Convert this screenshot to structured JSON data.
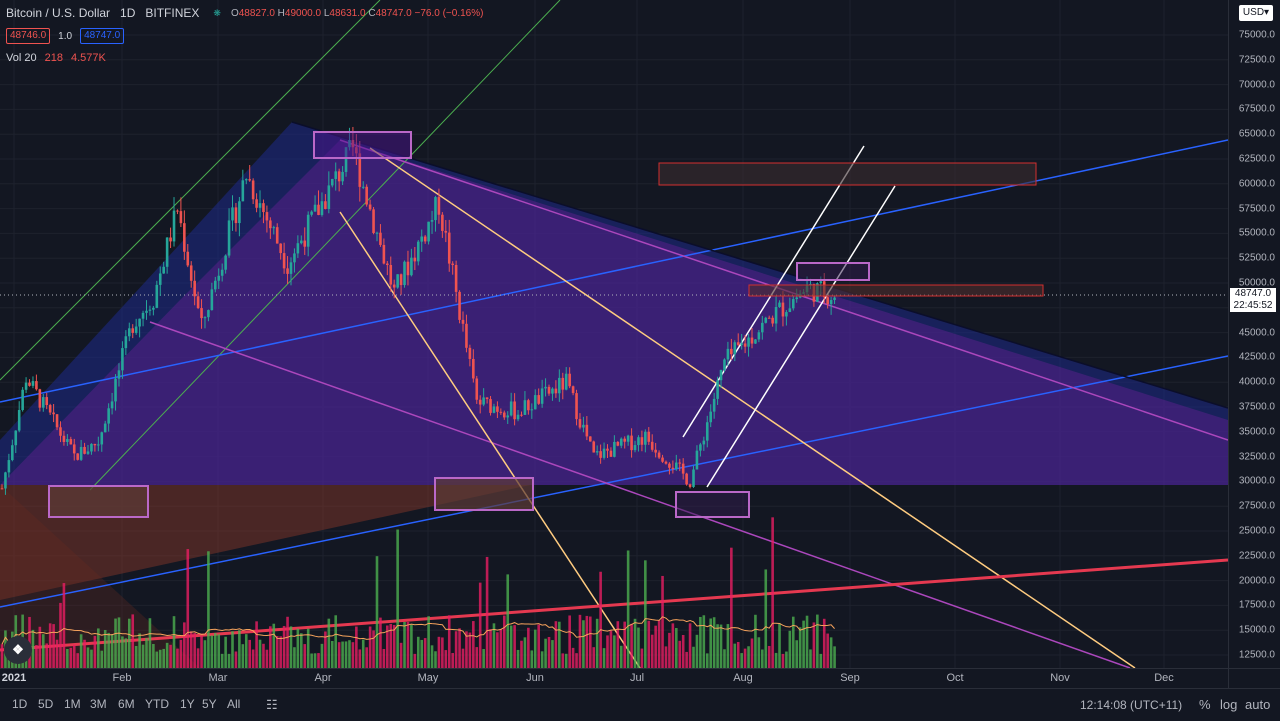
{
  "header": {
    "symbol": "Bitcoin / U.S. Dollar",
    "interval": "1D",
    "exchange": "BITFINEX",
    "ohlc": {
      "o_label": "O",
      "o": "48827.0",
      "h_label": "H",
      "h": "49000.0",
      "l_label": "L",
      "l": "48631.0",
      "c_label": "C",
      "c": "48747.0",
      "change": "−76.0 (−0.16%)"
    },
    "bid": "48746.0",
    "spread": "1.0",
    "ask": "48747.0",
    "volume_label": "Vol 20",
    "volume_value": "218",
    "volume_ma": "4.577K"
  },
  "currency_button": "USD",
  "price_scale": [
    "75000.0",
    "72500.0",
    "70000.0",
    "67500.0",
    "65000.0",
    "62500.0",
    "60000.0",
    "57500.0",
    "55000.0",
    "52500.0",
    "50000.0",
    "47500.0",
    "45000.0",
    "42500.0",
    "40000.0",
    "37500.0",
    "35000.0",
    "32500.0",
    "30000.0",
    "27500.0",
    "25000.0",
    "22500.0",
    "20000.0",
    "17500.0",
    "15000.0",
    "12500.0"
  ],
  "last_price": {
    "value": "48747.0",
    "countdown": "22:45:52"
  },
  "time_axis": [
    "2021",
    "Feb",
    "Mar",
    "Apr",
    "May",
    "Jun",
    "Jul",
    "Aug",
    "Sep",
    "Oct",
    "Nov",
    "Dec"
  ],
  "bottom_bar": {
    "ranges": [
      "1D",
      "5D",
      "1M",
      "3M",
      "6M",
      "YTD",
      "1Y",
      "5Y",
      "All"
    ],
    "clock": "12:14:08 (UTC+11)",
    "percent": "%",
    "log": "log",
    "auto": "auto"
  },
  "colors": {
    "up": "#26a69a",
    "down": "#ef5350",
    "vol_up": "#4caf50",
    "vol_down": "#e91e63",
    "background": "#131722",
    "wedge": "#9c27b0",
    "channel": "#2962ff"
  },
  "chart_data": {
    "type": "candlestick",
    "instrument": "Bitcoin / U.S. Dollar",
    "interval": "1D",
    "x_range": [
      "2021-01-01",
      "2021-12-31"
    ],
    "ylim": [
      11000,
      77000
    ],
    "close_series_approx": [
      {
        "date": "2021-01-01",
        "close": 29300
      },
      {
        "date": "2021-01-08",
        "close": 40500
      },
      {
        "date": "2021-01-15",
        "close": 36500
      },
      {
        "date": "2021-01-22",
        "close": 32500
      },
      {
        "date": "2021-01-29",
        "close": 34000
      },
      {
        "date": "2021-02-08",
        "close": 46000
      },
      {
        "date": "2021-02-14",
        "close": 48500
      },
      {
        "date": "2021-02-21",
        "close": 57500
      },
      {
        "date": "2021-02-28",
        "close": 45500
      },
      {
        "date": "2021-03-13",
        "close": 61000
      },
      {
        "date": "2021-03-25",
        "close": 52000
      },
      {
        "date": "2021-04-13",
        "close": 63500
      },
      {
        "date": "2021-04-25",
        "close": 49000
      },
      {
        "date": "2021-05-08",
        "close": 58000
      },
      {
        "date": "2021-05-19",
        "close": 38000
      },
      {
        "date": "2021-05-31",
        "close": 37000
      },
      {
        "date": "2021-06-14",
        "close": 40000
      },
      {
        "date": "2021-06-22",
        "close": 32500
      },
      {
        "date": "2021-07-07",
        "close": 34500
      },
      {
        "date": "2021-07-20",
        "close": 30000
      },
      {
        "date": "2021-07-30",
        "close": 42000
      },
      {
        "date": "2021-08-14",
        "close": 47000
      },
      {
        "date": "2021-08-23",
        "close": 49500
      },
      {
        "date": "2021-08-31",
        "close": 48747
      }
    ],
    "last": 48747.0
  }
}
